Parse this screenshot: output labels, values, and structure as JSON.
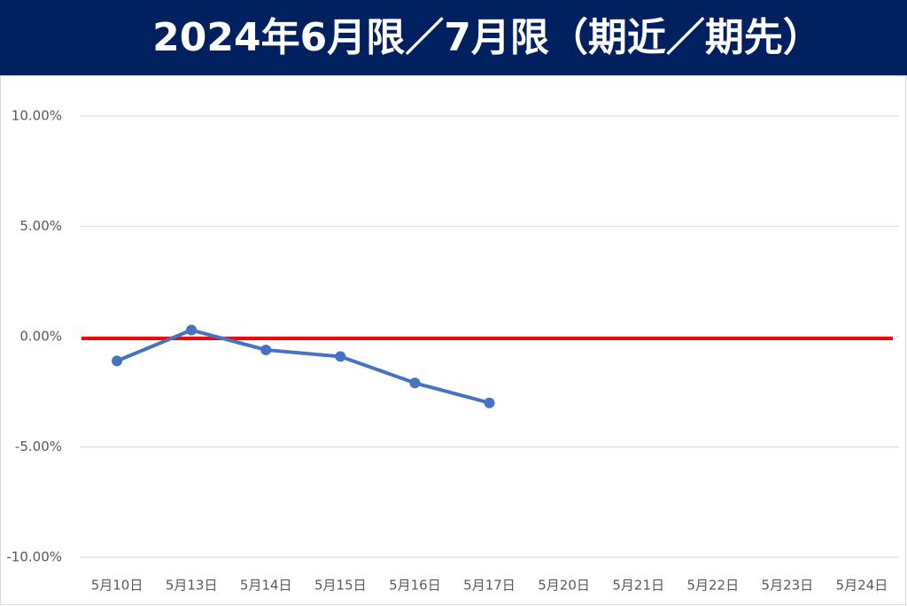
{
  "chart_data": {
    "type": "line",
    "title": "2024年6月限／7月限（期近／期先）",
    "categories": [
      "5月10日",
      "5月13日",
      "5月14日",
      "5月15日",
      "5月16日",
      "5月17日",
      "5月20日",
      "5月21日",
      "5月22日",
      "5月23日",
      "5月24日"
    ],
    "series": [
      {
        "color": "#4472c4",
        "values": [
          -1.1,
          0.3,
          -0.6,
          -0.9,
          -2.1,
          -3.0,
          null,
          null,
          null,
          null,
          null
        ]
      }
    ],
    "reference_line": {
      "value": 0,
      "color": "#ff0000"
    },
    "ylim": [
      -10,
      10
    ],
    "yticks": [
      {
        "value": -10,
        "label": "-10.00%"
      },
      {
        "value": -5,
        "label": "-5.00%"
      },
      {
        "value": 0,
        "label": "0.00%"
      },
      {
        "value": 5,
        "label": "5.00%"
      },
      {
        "value": 10,
        "label": "10.00%"
      }
    ],
    "grid": true
  }
}
